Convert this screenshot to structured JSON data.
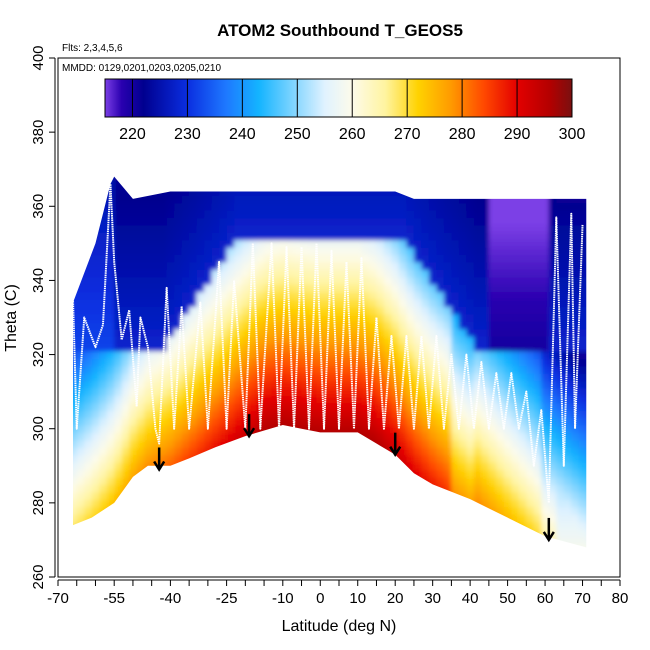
{
  "chart_data": {
    "type": "heatmap",
    "title": "ATOM2 Southbound T_GEOS5",
    "flights_label": "Flts: 2,3,4,5,6",
    "dates_label": "MMDD: 0129,0201,0203,0205,0210",
    "xlabel": "Latitude (deg N)",
    "ylabel": "Theta (C)",
    "xlim": [
      -70,
      80
    ],
    "ylim": [
      260,
      400
    ],
    "x_ticks": [
      -70,
      -55,
      -40,
      -25,
      -10,
      0,
      10,
      20,
      30,
      40,
      50,
      60,
      70,
      80
    ],
    "x_minor_ticks": [
      -65,
      -60,
      -50,
      -45,
      -35,
      -30,
      -20,
      -15,
      -5,
      5,
      15,
      25,
      35,
      45,
      55,
      65,
      75
    ],
    "y_ticks": [
      260,
      280,
      300,
      320,
      340,
      360,
      380,
      400
    ],
    "colorbar": {
      "range": [
        215,
        300
      ],
      "ticks": [
        220,
        230,
        240,
        250,
        260,
        270,
        280,
        290,
        300
      ],
      "stops": [
        {
          "v": 215,
          "c": "#7b3fe6"
        },
        {
          "v": 218,
          "c": "#2a00b0"
        },
        {
          "v": 222,
          "c": "#00008f"
        },
        {
          "v": 230,
          "c": "#0a2ee0"
        },
        {
          "v": 237,
          "c": "#1e78ff"
        },
        {
          "v": 243,
          "c": "#14b4ff"
        },
        {
          "v": 250,
          "c": "#8cd8ff"
        },
        {
          "v": 255,
          "c": "#e0f2ff"
        },
        {
          "v": 260,
          "c": "#fdfbea"
        },
        {
          "v": 266,
          "c": "#fff4a0"
        },
        {
          "v": 272,
          "c": "#ffd200"
        },
        {
          "v": 278,
          "c": "#ff9a00"
        },
        {
          "v": 284,
          "c": "#ff4800"
        },
        {
          "v": 290,
          "c": "#e30000"
        },
        {
          "v": 296,
          "c": "#b30000"
        },
        {
          "v": 300,
          "c": "#7a1010"
        }
      ]
    },
    "surface_boundary": [
      [
        -66,
        274
      ],
      [
        -61,
        276
      ],
      [
        -55,
        280
      ],
      [
        -50,
        287
      ],
      [
        -46,
        290
      ],
      [
        -40,
        290
      ],
      [
        -35,
        292
      ],
      [
        -28,
        295
      ],
      [
        -20,
        298
      ],
      [
        -10,
        301
      ],
      [
        -5,
        300
      ],
      [
        0,
        299
      ],
      [
        10,
        299
      ],
      [
        15,
        296
      ],
      [
        20,
        293
      ],
      [
        25,
        288
      ],
      [
        30,
        285
      ],
      [
        40,
        281
      ],
      [
        50,
        276
      ],
      [
        60,
        271
      ],
      [
        71,
        268
      ]
    ],
    "top_boundary": [
      [
        -66,
        334
      ],
      [
        -60,
        350
      ],
      [
        -56,
        366
      ],
      [
        -55,
        368
      ],
      [
        -50,
        362
      ],
      [
        -40,
        364
      ],
      [
        -30,
        364
      ],
      [
        -20,
        364
      ],
      [
        -10,
        364
      ],
      [
        0,
        364
      ],
      [
        10,
        364
      ],
      [
        20,
        364
      ],
      [
        25,
        362
      ],
      [
        30,
        362
      ],
      [
        71,
        362
      ]
    ],
    "arrows": [
      {
        "lat": -43,
        "theta": 289
      },
      {
        "lat": -19,
        "theta": 298
      },
      {
        "lat": 20,
        "theta": 293
      },
      {
        "lat": 61,
        "theta": 270
      }
    ],
    "flight_track_x": [
      -66,
      -65,
      -63,
      -60,
      -58,
      -56,
      -55,
      -53,
      -51,
      -49,
      -48,
      -46,
      -44,
      -43,
      -41,
      -39,
      -37,
      -35,
      -32,
      -30,
      -27,
      -25,
      -23,
      -20,
      -18,
      -16,
      -13,
      -11,
      -9,
      -7,
      -5,
      -3,
      -1,
      1,
      3,
      5,
      7,
      9,
      11,
      13,
      15,
      17,
      19,
      21,
      23,
      25,
      27,
      29,
      31,
      33,
      35,
      37,
      39,
      41,
      43,
      45,
      47,
      49,
      51,
      53,
      55,
      57,
      59,
      61,
      63,
      65,
      67,
      68,
      70
    ],
    "flight_track_y": [
      335,
      300,
      330,
      322,
      328,
      366,
      345,
      324,
      332,
      306,
      330,
      322,
      300,
      296,
      338,
      300,
      333,
      300,
      334,
      300,
      345,
      300,
      340,
      300,
      350,
      300,
      350,
      300,
      349,
      300,
      349,
      300,
      350,
      300,
      348,
      300,
      345,
      300,
      346,
      300,
      330,
      300,
      325,
      300,
      325,
      300,
      325,
      300,
      325,
      300,
      320,
      300,
      320,
      300,
      318,
      300,
      315,
      300,
      315,
      300,
      310,
      290,
      305,
      280,
      357,
      290,
      358,
      300,
      355
    ]
  }
}
